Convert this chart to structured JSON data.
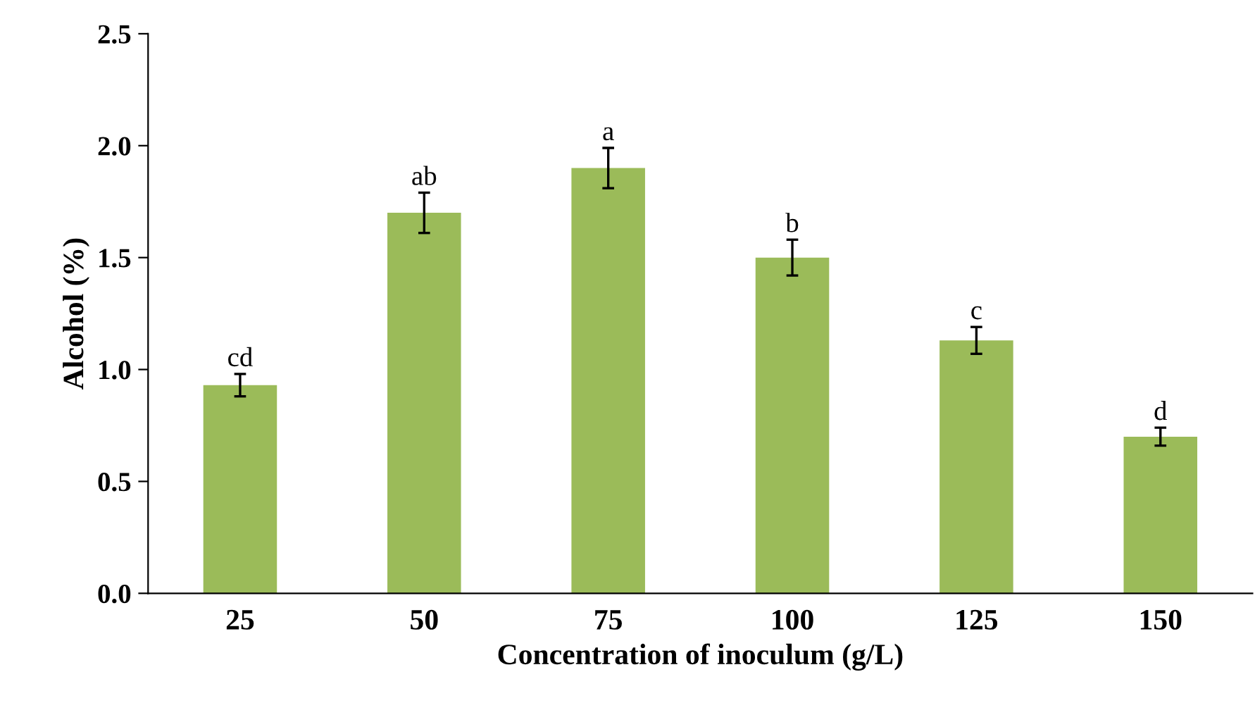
{
  "chart_data": {
    "type": "bar",
    "xlabel": "Concentration of inoculum (g/L)",
    "ylabel": "Alcohol (%)",
    "categories": [
      "25",
      "50",
      "75",
      "100",
      "125",
      "150"
    ],
    "values": [
      0.93,
      1.7,
      1.9,
      1.5,
      1.13,
      0.7
    ],
    "errors": [
      0.05,
      0.09,
      0.09,
      0.08,
      0.06,
      0.04
    ],
    "color": "#9bbb59",
    "ylim": [
      0,
      2.5
    ],
    "yticks": [
      {
        "value": 0,
        "label": "0.0"
      },
      {
        "value": 0.5,
        "label": "0.5"
      },
      {
        "value": 1.0,
        "label": "1.0"
      },
      {
        "value": 1.5,
        "label": "1.5"
      },
      {
        "value": 2.0,
        "label": "2.0"
      },
      {
        "value": 2.5,
        "label": "2.5"
      }
    ],
    "grid": false,
    "legend": false,
    "annotations": [
      "cd",
      "ab",
      "a",
      "b",
      "c",
      "d"
    ]
  }
}
